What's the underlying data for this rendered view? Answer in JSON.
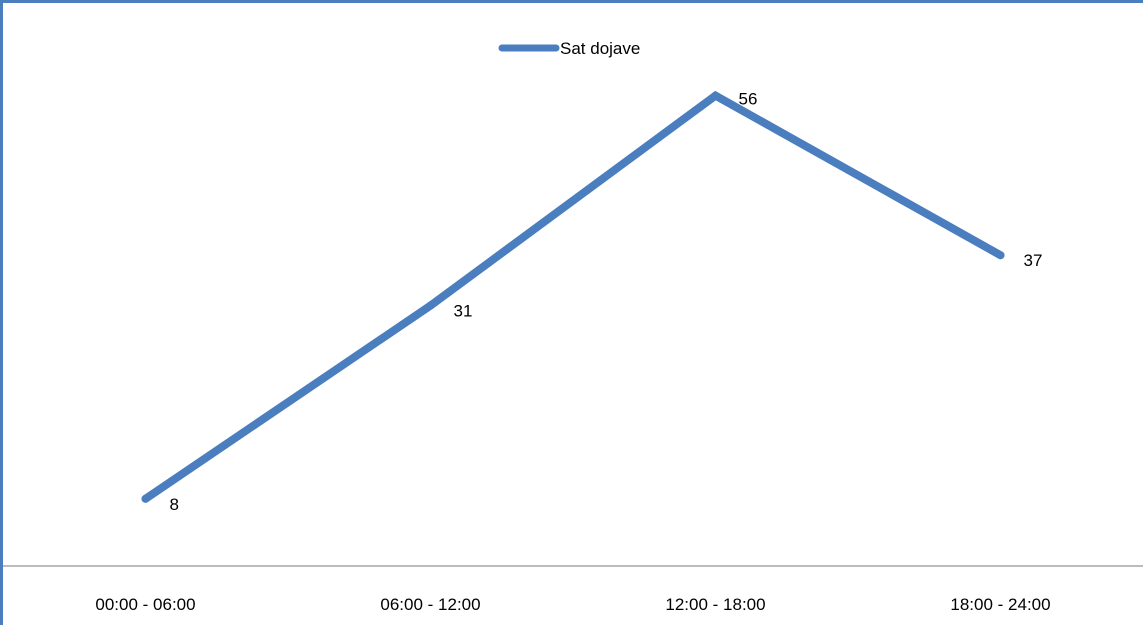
{
  "chart_data": {
    "type": "line",
    "categories": [
      "00:00 - 06:00",
      "06:00 - 12:00",
      "12:00 - 18:00",
      "18:00 - 24:00"
    ],
    "series": [
      {
        "name": "Sat dojave",
        "values": [
          8,
          31,
          56,
          37
        ],
        "color": "#4a7ebf"
      }
    ],
    "data_labels": [
      "8",
      "31",
      "56",
      "37"
    ],
    "title": "",
    "xlabel": "",
    "ylabel": "",
    "ylim": [
      0,
      60
    ],
    "grid": false,
    "legend": "top-center",
    "axis_color": "#a6a6a6",
    "border_color": "#4a7ebf"
  }
}
